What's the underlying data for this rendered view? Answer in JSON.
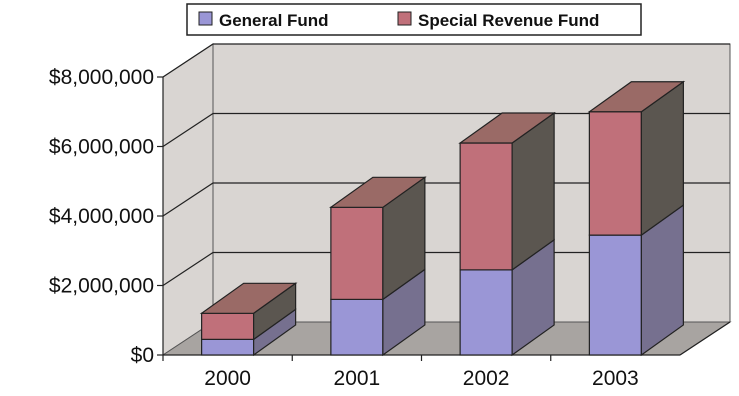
{
  "chart_data": {
    "type": "bar",
    "stacked": true,
    "three_d": true,
    "categories": [
      "2000",
      "2001",
      "2002",
      "2003"
    ],
    "series": [
      {
        "name": "General Fund",
        "values": [
          450000,
          1600000,
          2450000,
          3450000
        ]
      },
      {
        "name": "Special Revenue Fund",
        "values": [
          750000,
          2650000,
          3650000,
          3550000
        ]
      }
    ],
    "y_ticks": [
      0,
      2000000,
      4000000,
      6000000,
      8000000
    ],
    "y_tick_labels": [
      "$0",
      "$2,000,000",
      "$4,000,000",
      "$6,000,000",
      "$8,000,000"
    ],
    "ylim": [
      0,
      8000000
    ],
    "title": "",
    "xlabel": "",
    "ylabel": "",
    "grid": true,
    "legend_position": "top-center"
  },
  "colors": {
    "General Fund": "#9a96d6",
    "Special Revenue Fund": "#c0707a",
    "wall": "#d9d5d2",
    "floor": "#a8a4a1",
    "top": "#9a6a66",
    "side": "#5b5650",
    "side_general": "#76708f"
  }
}
